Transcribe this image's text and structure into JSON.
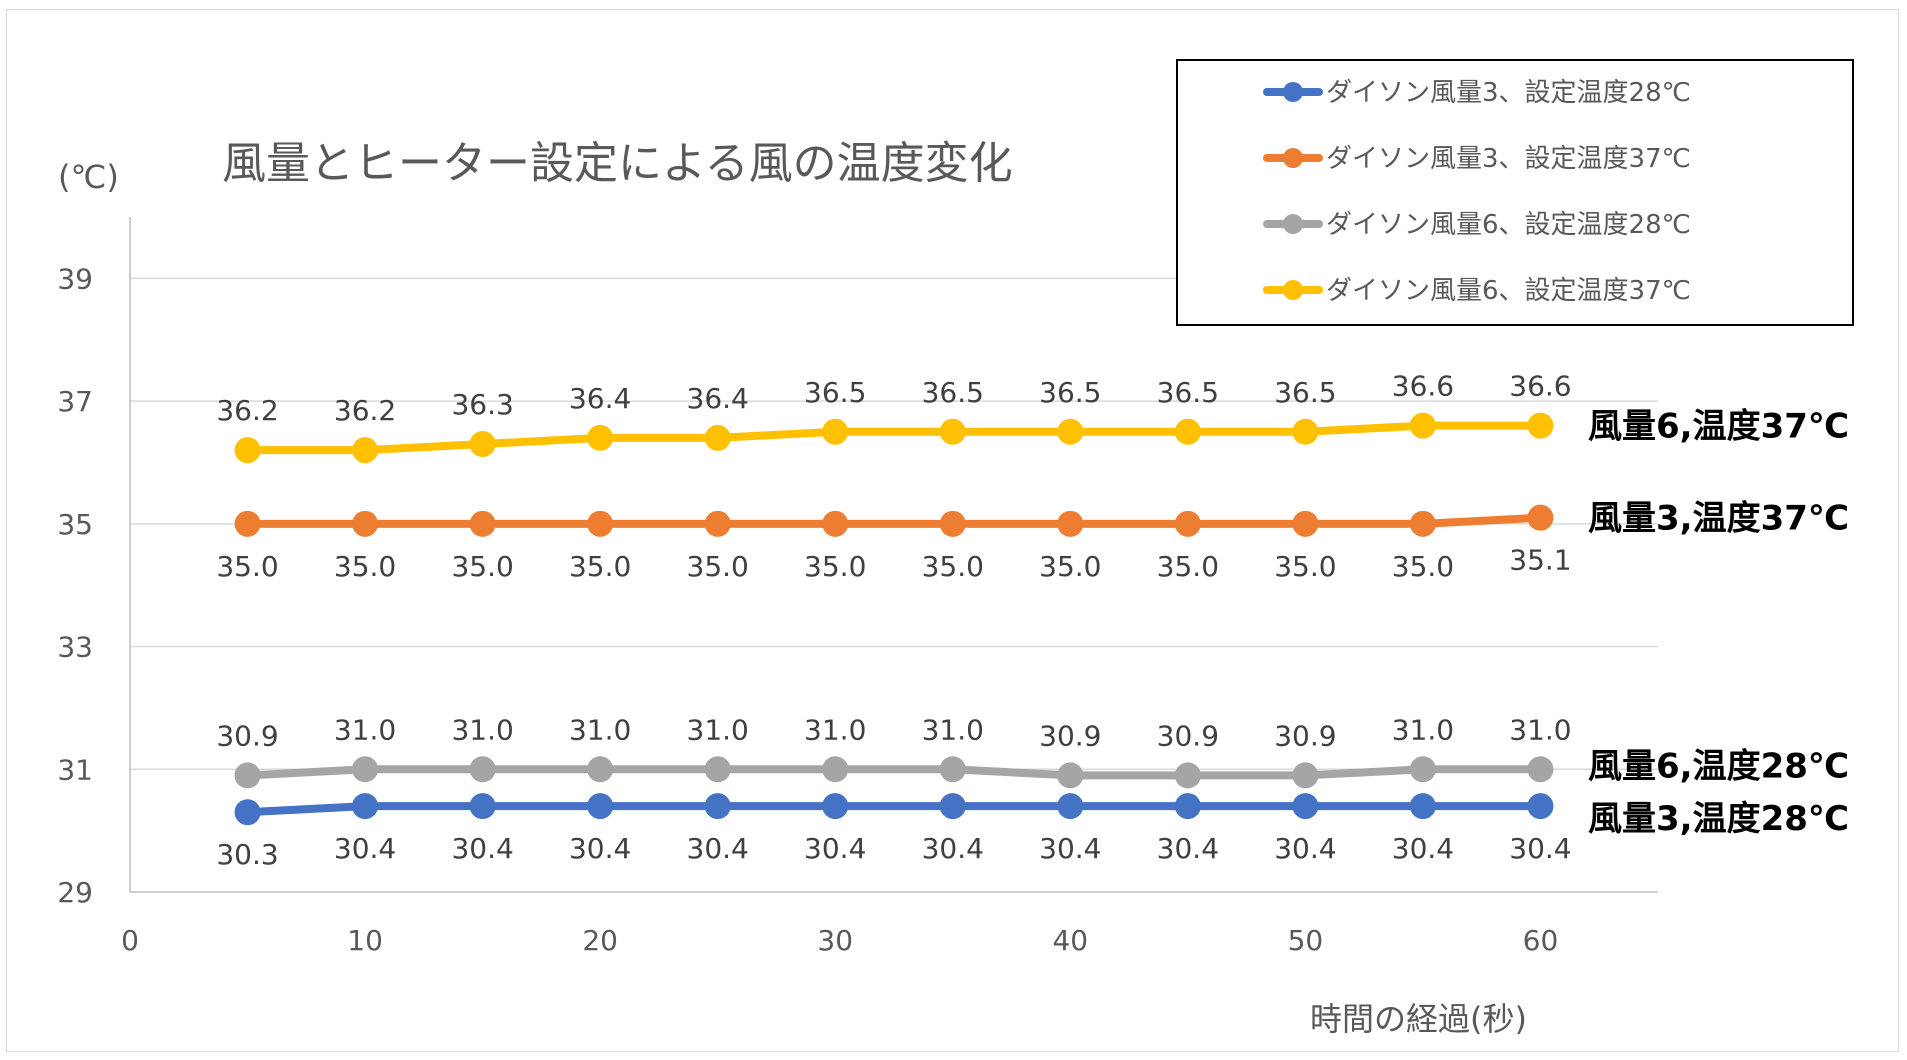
{
  "chart_data": {
    "type": "line",
    "title": "風量とヒーター設定による風の温度変化",
    "ylabel": "(℃)",
    "xlabel": "時間の経過(秒)",
    "xlim": [
      0,
      65
    ],
    "ylim": [
      29,
      40
    ],
    "xticks": [
      "0",
      "10",
      "20",
      "30",
      "40",
      "50",
      "60"
    ],
    "yticks": [
      "29",
      "31",
      "33",
      "35",
      "37",
      "39"
    ],
    "legend_position": "top-right",
    "x": [
      5,
      10,
      15,
      20,
      25,
      30,
      35,
      40,
      45,
      50,
      55,
      60
    ],
    "series": [
      {
        "name": "ダイソン風量3、設定温度28℃",
        "color": "#4472c4",
        "label_position": "below",
        "annotation": "風量3,温度28℃",
        "values": [
          30.3,
          30.4,
          30.4,
          30.4,
          30.4,
          30.4,
          30.4,
          30.4,
          30.4,
          30.4,
          30.4,
          30.4
        ],
        "labels": [
          "30.3",
          "30.4",
          "30.4",
          "30.4",
          "30.4",
          "30.4",
          "30.4",
          "30.4",
          "30.4",
          "30.4",
          "30.4",
          "30.4"
        ]
      },
      {
        "name": "ダイソン風量3、設定温度37℃",
        "color": "#ed7d31",
        "label_position": "below",
        "annotation": "風量3,温度37℃",
        "values": [
          35.0,
          35.0,
          35.0,
          35.0,
          35.0,
          35.0,
          35.0,
          35.0,
          35.0,
          35.0,
          35.0,
          35.1
        ],
        "labels": [
          "35.0",
          "35.0",
          "35.0",
          "35.0",
          "35.0",
          "35.0",
          "35.0",
          "35.0",
          "35.0",
          "35.0",
          "35.0",
          "35.1"
        ]
      },
      {
        "name": "ダイソン風量6、設定温度28℃",
        "color": "#a5a5a5",
        "label_position": "above",
        "annotation": "風量6,温度28℃",
        "values": [
          30.9,
          31.0,
          31.0,
          31.0,
          31.0,
          31.0,
          31.0,
          30.9,
          30.9,
          30.9,
          31.0,
          31.0
        ],
        "labels": [
          "30.9",
          "31.0",
          "31.0",
          "31.0",
          "31.0",
          "31.0",
          "31.0",
          "30.9",
          "30.9",
          "30.9",
          "31.0",
          "31.0"
        ]
      },
      {
        "name": "ダイソン風量6、設定温度37℃",
        "color": "#ffc000",
        "label_position": "above",
        "annotation": "風量6,温度37℃",
        "values": [
          36.2,
          36.2,
          36.3,
          36.4,
          36.4,
          36.5,
          36.5,
          36.5,
          36.5,
          36.5,
          36.6,
          36.6
        ],
        "labels": [
          "36.2",
          "36.2",
          "36.3",
          "36.4",
          "36.4",
          "36.5",
          "36.5",
          "36.5",
          "36.5",
          "36.5",
          "36.6",
          "36.6"
        ]
      }
    ]
  },
  "colors": {
    "gridline": "#d9d9d9",
    "axis": "#bfbfbf",
    "text": "#595959"
  }
}
